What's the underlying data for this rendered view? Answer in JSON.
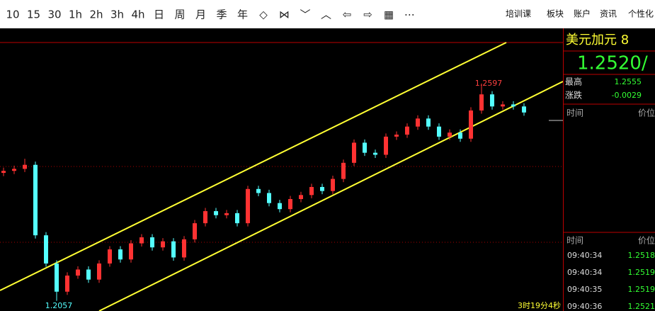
{
  "toolbar": {
    "periods": [
      "10",
      "15",
      "30",
      "1h",
      "2h",
      "3h",
      "4h",
      "日",
      "周",
      "月",
      "季",
      "年"
    ],
    "tools": [
      "◇",
      "⋈",
      "﹀",
      "︿",
      "⇦",
      "⇨",
      "▦",
      "⋯"
    ],
    "menu": [
      "培训课",
      "板块",
      "账户",
      "资讯",
      "个性化"
    ]
  },
  "chart": {
    "ylim": [
      1.2032,
      1.2734
    ],
    "high_label": "1.2597",
    "low_label": "1.2057",
    "countdown": "3时19分4秒",
    "up_color": "#ff3232",
    "down_color": "#54ffff",
    "candles": {
      "open": [
        1.2375,
        1.238,
        1.2385,
        1.2395,
        1.222,
        1.215,
        1.208,
        1.212,
        1.2135,
        1.211,
        1.215,
        1.2185,
        1.216,
        1.22,
        1.2215,
        1.219,
        1.2205,
        1.2165,
        1.221,
        1.225,
        1.228,
        1.227,
        1.2275,
        1.225,
        1.2335,
        1.2325,
        1.23,
        1.2285,
        1.231,
        1.232,
        1.234,
        1.233,
        1.236,
        1.24,
        1.245,
        1.2425,
        1.242,
        1.2465,
        1.247,
        1.249,
        1.251,
        1.249,
        1.2465,
        1.2475,
        1.246,
        1.253,
        1.257,
        1.254,
        1.2545,
        1.254
      ],
      "high": [
        1.2388,
        1.2393,
        1.241,
        1.2403,
        1.2228,
        1.2158,
        1.2128,
        1.2143,
        1.2143,
        1.2158,
        1.2193,
        1.2193,
        1.2208,
        1.2223,
        1.2223,
        1.2213,
        1.2213,
        1.2218,
        1.2258,
        1.2288,
        1.2288,
        1.2283,
        1.2283,
        1.2343,
        1.2343,
        1.2333,
        1.2308,
        1.2318,
        1.2328,
        1.2348,
        1.2348,
        1.2368,
        1.2408,
        1.2458,
        1.2458,
        1.2433,
        1.2473,
        1.2478,
        1.2498,
        1.2518,
        1.2518,
        1.2498,
        1.2483,
        1.2483,
        1.2538,
        1.2597,
        1.2578,
        1.2553,
        1.2553,
        1.2548
      ],
      "low": [
        1.2367,
        1.2372,
        1.2377,
        1.2212,
        1.2142,
        1.2057,
        1.2072,
        1.2112,
        1.2102,
        1.2102,
        1.2142,
        1.2152,
        1.2152,
        1.2192,
        1.2182,
        1.2182,
        1.2157,
        1.2157,
        1.2202,
        1.2242,
        1.2262,
        1.2262,
        1.2242,
        1.2242,
        1.2317,
        1.2292,
        1.2277,
        1.2277,
        1.2302,
        1.2312,
        1.2322,
        1.2322,
        1.2352,
        1.2392,
        1.2417,
        1.2412,
        1.2412,
        1.2457,
        1.2462,
        1.2482,
        1.2482,
        1.2457,
        1.2457,
        1.2452,
        1.2452,
        1.2522,
        1.2532,
        1.2532,
        1.2532,
        1.2517
      ],
      "close": [
        1.238,
        1.2385,
        1.2395,
        1.222,
        1.215,
        1.208,
        1.212,
        1.2135,
        1.211,
        1.215,
        1.2185,
        1.216,
        1.22,
        1.2215,
        1.219,
        1.2205,
        1.2165,
        1.221,
        1.225,
        1.228,
        1.227,
        1.2275,
        1.225,
        1.2335,
        1.2325,
        1.23,
        1.2285,
        1.231,
        1.232,
        1.234,
        1.233,
        1.236,
        1.24,
        1.245,
        1.2425,
        1.242,
        1.2465,
        1.247,
        1.249,
        1.251,
        1.249,
        1.2465,
        1.2475,
        1.246,
        1.253,
        1.257,
        1.254,
        1.2545,
        1.254,
        1.2525
      ]
    }
  },
  "quote": {
    "name": "美元加元 8",
    "price": "1.2520/",
    "rows": [
      [
        "最高",
        "1.2555"
      ],
      [
        "涨跌",
        "-0.0029"
      ]
    ],
    "header": [
      "时间",
      "价位"
    ],
    "trades": [
      [
        "09:40:34",
        "1.2518"
      ],
      [
        "09:40:34",
        "1.2519"
      ],
      [
        "09:40:35",
        "1.2519"
      ],
      [
        "09:40:36",
        "1.2521"
      ]
    ]
  }
}
